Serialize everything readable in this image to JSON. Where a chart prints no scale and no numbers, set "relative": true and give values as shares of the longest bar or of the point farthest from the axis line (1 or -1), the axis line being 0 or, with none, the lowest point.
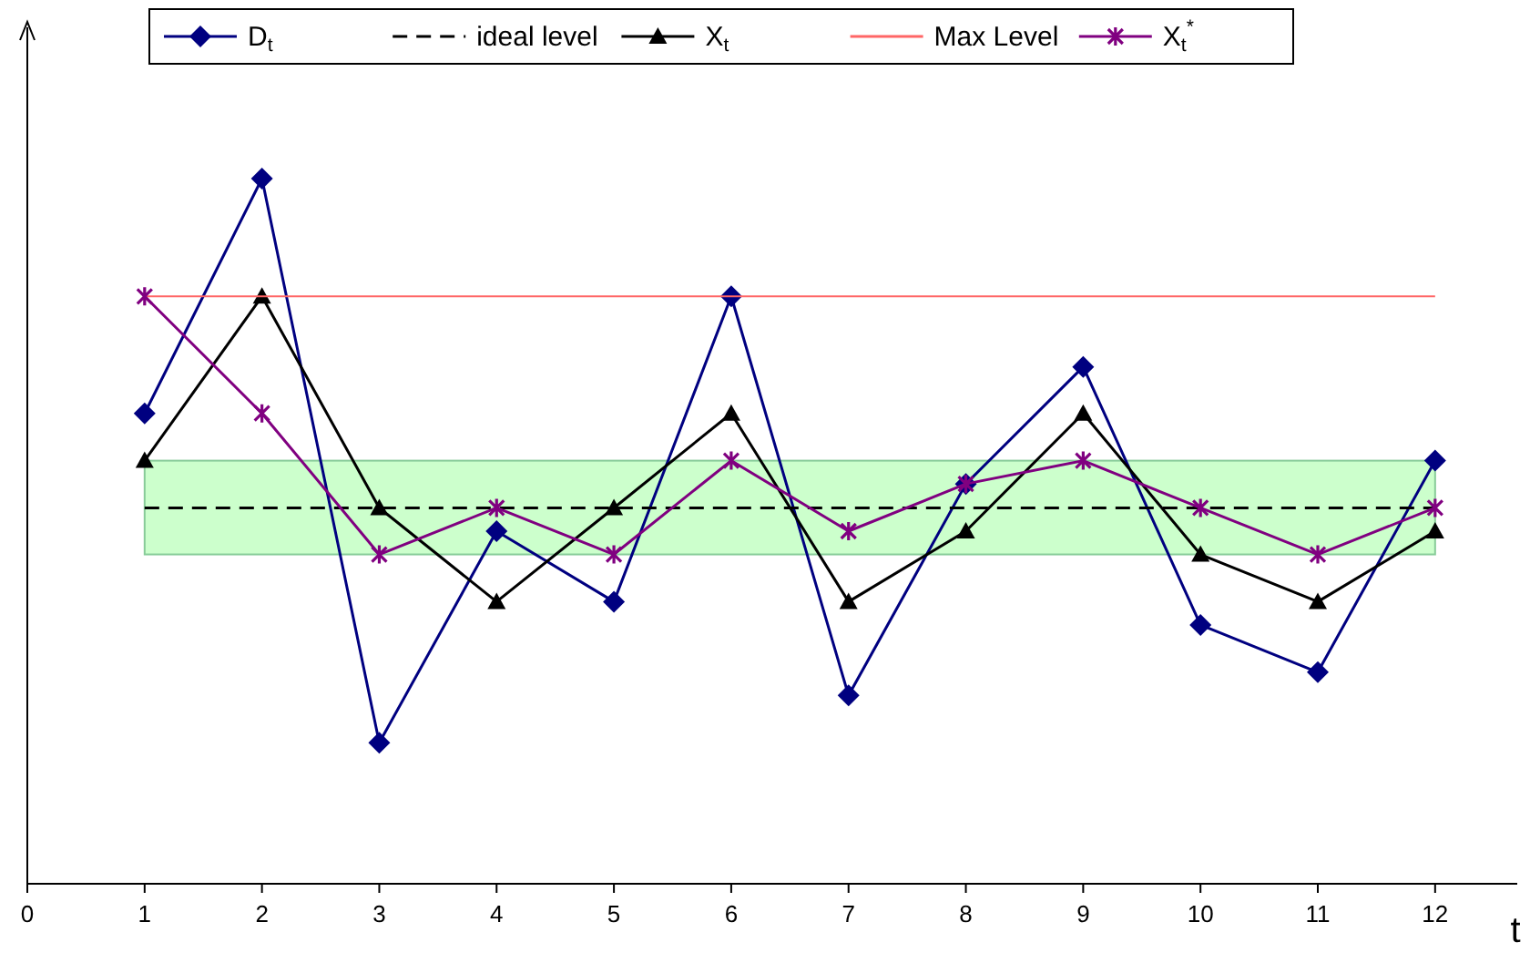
{
  "chart_data": {
    "type": "line",
    "relative": true,
    "xlabel": "t",
    "x": [
      1,
      2,
      3,
      4,
      5,
      6,
      7,
      8,
      9,
      10,
      11,
      12
    ],
    "xlim": [
      0,
      12.7
    ],
    "xticks": [
      0,
      1,
      2,
      3,
      4,
      5,
      6,
      7,
      8,
      9,
      10,
      11,
      12
    ],
    "legend": "top",
    "grid": false,
    "bands": [
      {
        "axis": "y",
        "from": 0.467,
        "to": 0.6,
        "color": "#ccffcc"
      }
    ],
    "series": [
      {
        "name": "D$_{t}$",
        "color": "#000080",
        "marker": "diamond",
        "line_style": "solid",
        "values": [
          0.667,
          1,
          0.2,
          0.5,
          0.4,
          0.833,
          0.267,
          0.567,
          0.733,
          0.367,
          0.3,
          0.6
        ]
      },
      {
        "name": "ideal level",
        "color": "#000000",
        "marker": "none",
        "line_style": "dashed",
        "values": [
          0.533,
          0.533,
          0.533,
          0.533,
          0.533,
          0.533,
          0.533,
          0.533,
          0.533,
          0.533,
          0.533,
          0.533
        ]
      },
      {
        "name": "X$_{t}$",
        "color": "#000000",
        "marker": "triangle",
        "line_style": "solid",
        "values": [
          0.6,
          0.833,
          0.533,
          0.4,
          0.533,
          0.667,
          0.4,
          0.5,
          0.667,
          0.467,
          0.4,
          0.5
        ]
      },
      {
        "name": "Max Level",
        "color": "#ff6666",
        "marker": "none",
        "line_style": "solid",
        "values": [
          0.833,
          0.833,
          0.833,
          0.833,
          0.833,
          0.833,
          0.833,
          0.833,
          0.833,
          0.833,
          0.833,
          0.833
        ]
      },
      {
        "name": "X$_{t}$$^{*}$",
        "color": "#800080",
        "marker": "cross",
        "line_style": "solid",
        "values": [
          0.833,
          0.667,
          0.467,
          0.533,
          0.467,
          0.6,
          0.5,
          0.567,
          0.6,
          0.533,
          0.467,
          0.533
        ]
      }
    ]
  }
}
